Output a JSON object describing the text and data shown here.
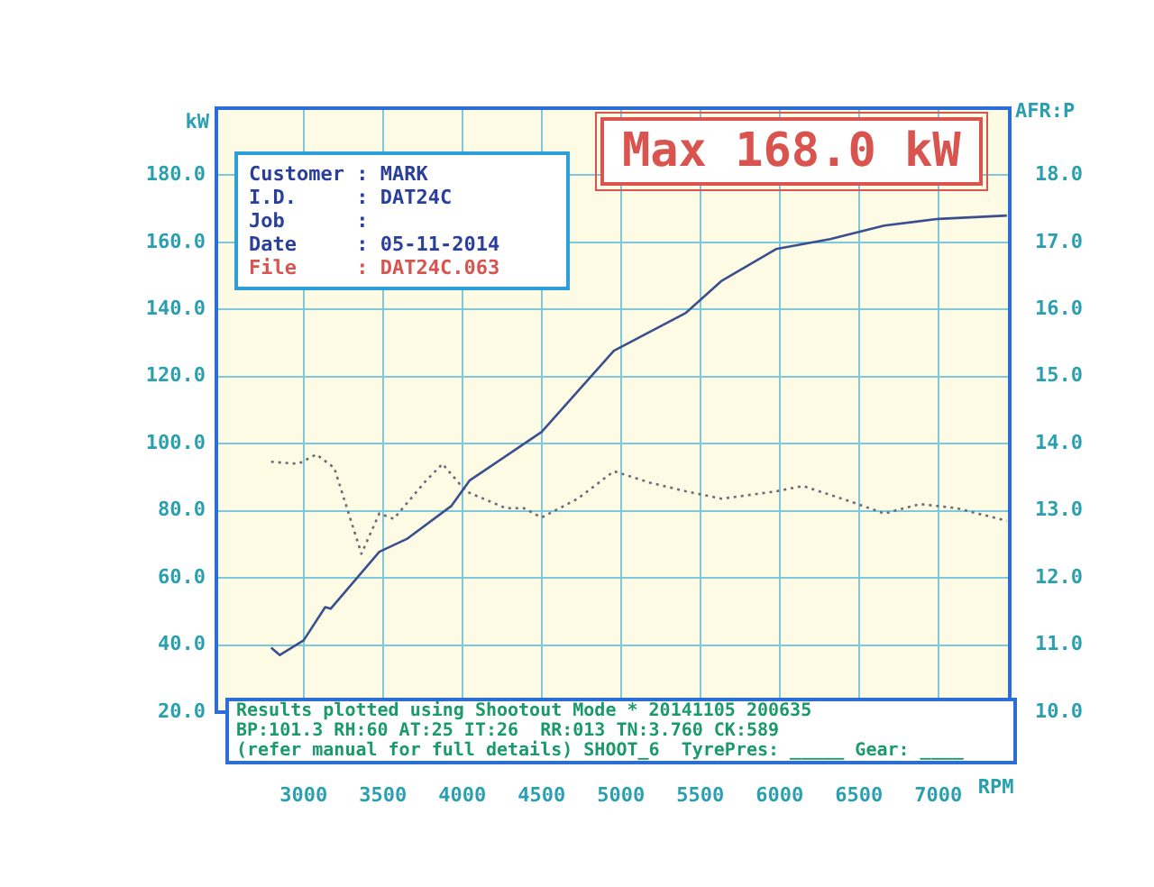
{
  "chart_data": {
    "type": "line",
    "xlabel": "RPM",
    "ylabel": "kW",
    "y2label": "AFR:P",
    "xlim": [
      2450,
      7450
    ],
    "xticks": [
      3000,
      3500,
      4000,
      4500,
      5000,
      5500,
      6000,
      6500,
      7000
    ],
    "ylim": [
      20,
      200
    ],
    "yticks": [
      {
        "value": 20,
        "label": "20.0"
      },
      {
        "value": 40,
        "label": "40.0"
      },
      {
        "value": 60,
        "label": "60.0"
      },
      {
        "value": 80,
        "label": "80.0"
      },
      {
        "value": 100,
        "label": "100.0"
      },
      {
        "value": 120,
        "label": "120.0"
      },
      {
        "value": 140,
        "label": "140.0"
      },
      {
        "value": 160,
        "label": "160.0"
      },
      {
        "value": 180,
        "label": "180.0"
      }
    ],
    "y2lim": [
      10,
      19
    ],
    "y2ticks": [
      {
        "value": 10,
        "label": "10.0"
      },
      {
        "value": 11,
        "label": "11.0"
      },
      {
        "value": 12,
        "label": "12.0"
      },
      {
        "value": 13,
        "label": "13.0"
      },
      {
        "value": 14,
        "label": "14.0"
      },
      {
        "value": 15,
        "label": "15.0"
      },
      {
        "value": 16,
        "label": "16.0"
      },
      {
        "value": 17,
        "label": "17.0"
      },
      {
        "value": 18,
        "label": "18.0"
      }
    ],
    "grid": true,
    "legend": false,
    "marker": "none",
    "series": [
      {
        "color": "#3a4f8f",
        "line_style": "solid",
        "x": [
          2795,
          2850,
          3000,
          3136,
          3170,
          3477,
          3650,
          3932,
          4045,
          4500,
          4955,
          5409,
          5636,
          5977,
          6318,
          6659,
          7000,
          7432
        ],
        "values": [
          39.2,
          37,
          41.4,
          51.3,
          50.8,
          67.8,
          71.6,
          81.5,
          89,
          103.5,
          127.7,
          139,
          148.6,
          158,
          161,
          165,
          167,
          168
        ]
      },
      {
        "color": "#6a6a7a",
        "line_style": "dotted",
        "axis": "y2",
        "x": [
          2795,
          2966,
          3080,
          3193,
          3364,
          3477,
          3568,
          3760,
          3875,
          4023,
          4273,
          4386,
          4500,
          4727,
          4955,
          5182,
          5409,
          5636,
          5977,
          6148,
          6432,
          6659,
          6886,
          7114,
          7432
        ],
        "values": [
          13.73,
          13.7,
          13.84,
          13.64,
          12.36,
          12.96,
          12.88,
          13.42,
          13.7,
          13.29,
          13.04,
          13.04,
          12.9,
          13.18,
          13.59,
          13.42,
          13.29,
          13.18,
          13.29,
          13.37,
          13.15,
          12.96,
          13.1,
          13.04,
          12.85
        ]
      }
    ],
    "annotations": [
      "Max 168.0 kW",
      "Customer : MARK",
      "I.D.     : DAT24C",
      "Job      :",
      "Date     : 05-11-2014",
      "File     : DAT24C.063",
      "Results plotted using Shootout Mode * 20141105 200635",
      "BP:101.3 RH:60 AT:25 IT:26  RR:013 TN:3.760 CK:589",
      "(refer manual for full details) SHOOT_6  TyrePres: _____ Gear: ____"
    ]
  }
}
